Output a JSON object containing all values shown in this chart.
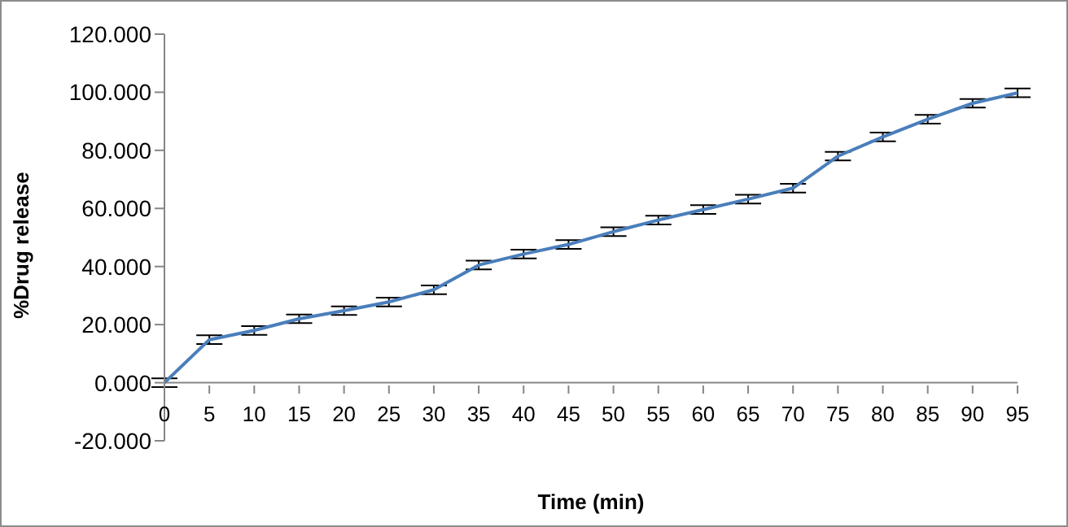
{
  "chart_data": {
    "type": "line",
    "xlabel": "Time (min)",
    "ylabel": "%Drug release",
    "x": [
      0,
      5,
      10,
      15,
      20,
      25,
      30,
      35,
      40,
      45,
      50,
      55,
      60,
      65,
      70,
      75,
      80,
      85,
      90,
      95
    ],
    "series": [
      {
        "color": "#4a7ebb",
        "values": [
          0,
          14.8,
          18,
          22,
          24.8,
          27.8,
          32,
          40.5,
          44.3,
          47.6,
          52,
          56,
          59.6,
          63.2,
          67,
          78,
          84.6,
          90.7,
          96.2,
          99.8
        ],
        "errors": [
          1.5,
          1.5,
          1.5,
          1.5,
          1.5,
          1.5,
          1.5,
          1.5,
          1.5,
          1.5,
          1.5,
          1.5,
          1.5,
          1.5,
          1.5,
          1.5,
          1.5,
          1.5,
          1.5,
          1.5
        ]
      }
    ],
    "xlim": [
      0,
      95
    ],
    "xticks": [
      0,
      5,
      10,
      15,
      20,
      25,
      30,
      35,
      40,
      45,
      50,
      55,
      60,
      65,
      70,
      75,
      80,
      85,
      90,
      95
    ],
    "ylim": [
      -20,
      120
    ],
    "yticks": [
      {
        "value": -20,
        "label": "-20.000"
      },
      {
        "value": 0,
        "label": "0.000"
      },
      {
        "value": 20,
        "label": "20.000"
      },
      {
        "value": 40,
        "label": "40.000"
      },
      {
        "value": 60,
        "label": "60.000"
      },
      {
        "value": 80,
        "label": "80.000"
      },
      {
        "value": 100,
        "label": "100.000"
      },
      {
        "value": 120,
        "label": "120.000"
      }
    ],
    "grid": false,
    "legend": false,
    "marker": "none",
    "line_style": "solid"
  }
}
